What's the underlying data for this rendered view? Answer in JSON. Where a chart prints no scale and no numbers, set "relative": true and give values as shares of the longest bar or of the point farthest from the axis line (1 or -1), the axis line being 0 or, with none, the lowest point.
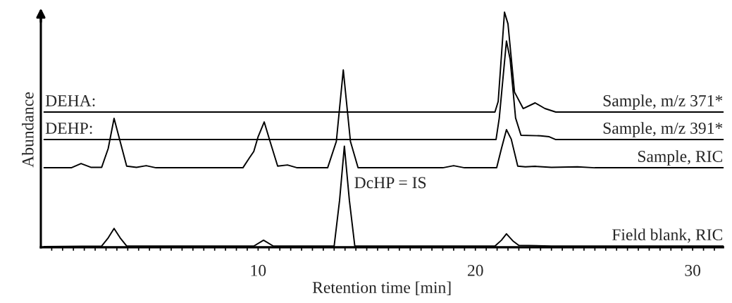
{
  "chart_data": {
    "type": "line",
    "relative": true,
    "xlabel": "Retention time [min]",
    "ylabel": "Abundance",
    "xlim": [
      0,
      31.4
    ],
    "xticks": [
      {
        "value": 0.5,
        "label": null
      },
      {
        "value": 1,
        "label": null
      },
      {
        "value": 1.5,
        "label": null
      },
      {
        "value": 2,
        "label": null
      },
      {
        "value": 2.5,
        "label": null
      },
      {
        "value": 3,
        "label": null
      },
      {
        "value": 3.5,
        "label": null
      },
      {
        "value": 4,
        "label": null
      },
      {
        "value": 4.5,
        "label": null
      },
      {
        "value": 5,
        "label": null
      },
      {
        "value": 5.5,
        "label": null
      },
      {
        "value": 6,
        "label": null
      },
      {
        "value": 6.5,
        "label": null
      },
      {
        "value": 7,
        "label": null
      },
      {
        "value": 7.5,
        "label": null
      },
      {
        "value": 8,
        "label": null
      },
      {
        "value": 8.5,
        "label": null
      },
      {
        "value": 9,
        "label": null
      },
      {
        "value": 9.5,
        "label": null
      },
      10,
      {
        "value": 10.5,
        "label": null
      },
      {
        "value": 11,
        "label": null
      },
      {
        "value": 11.5,
        "label": null
      },
      {
        "value": 12,
        "label": null
      },
      {
        "value": 12.5,
        "label": null
      },
      {
        "value": 13,
        "label": null
      },
      {
        "value": 13.5,
        "label": null
      },
      {
        "value": 14,
        "label": null
      },
      {
        "value": 14.5,
        "label": null
      },
      {
        "value": 15,
        "label": null
      },
      {
        "value": 15.5,
        "label": null
      },
      {
        "value": 16,
        "label": null
      },
      {
        "value": 16.5,
        "label": null
      },
      {
        "value": 17,
        "label": null
      },
      {
        "value": 17.5,
        "label": null
      },
      {
        "value": 18,
        "label": null
      },
      {
        "value": 18.5,
        "label": null
      },
      {
        "value": 19,
        "label": null
      },
      {
        "value": 19.5,
        "label": null
      },
      20,
      {
        "value": 20.5,
        "label": null
      },
      {
        "value": 21,
        "label": null
      },
      {
        "value": 21.5,
        "label": null
      },
      {
        "value": 22,
        "label": null
      },
      {
        "value": 22.5,
        "label": null
      },
      {
        "value": 23,
        "label": null
      },
      {
        "value": 23.5,
        "label": null
      },
      {
        "value": 24,
        "label": null
      },
      {
        "value": 24.5,
        "label": null
      },
      {
        "value": 25,
        "label": null
      },
      {
        "value": 25.5,
        "label": null
      },
      {
        "value": 26,
        "label": null
      },
      {
        "value": 26.5,
        "label": null
      },
      {
        "value": 27,
        "label": null
      },
      {
        "value": 27.5,
        "label": null
      },
      {
        "value": 28,
        "label": null
      },
      {
        "value": 28.5,
        "label": null
      },
      {
        "value": 29,
        "label": null
      },
      {
        "value": 29.5,
        "label": null
      },
      30,
      {
        "value": 30.5,
        "label": null
      },
      {
        "value": 31,
        "label": null
      }
    ],
    "tick_labels": "x",
    "grid": false,
    "legend": false,
    "marker": "none",
    "line_style": "solid",
    "series": [
      {
        "name": "Sample, m/z 371*",
        "color": "#000000",
        "x": [
          0.15,
          20.9,
          21.05,
          21.34,
          21.5,
          21.8,
          22.2,
          22.75,
          23.2,
          23.7,
          31.4
        ],
        "values": [
          0.575,
          0.575,
          0.62,
          1.0,
          0.95,
          0.66,
          0.59,
          0.614,
          0.59,
          0.575,
          0.575
        ]
      },
      {
        "name": "Sample, m/z 391*",
        "color": "#000000",
        "x": [
          0.15,
          20.95,
          21.1,
          21.43,
          21.6,
          21.85,
          22.1,
          23.0,
          23.4,
          23.7,
          31.4
        ],
        "values": [
          0.458,
          0.458,
          0.55,
          0.877,
          0.8,
          0.55,
          0.476,
          0.474,
          0.47,
          0.458,
          0.458
        ]
      },
      {
        "name": "Sample, RIC",
        "color": "#000000",
        "x": [
          0.15,
          1.4,
          1.85,
          2.3,
          2.8,
          3.1,
          3.37,
          3.65,
          3.95,
          4.4,
          4.85,
          5.3,
          9.3,
          9.6,
          9.8,
          10.0,
          10.28,
          10.55,
          10.9,
          11.35,
          11.8,
          13.2,
          13.6,
          13.92,
          14.25,
          14.6,
          18.5,
          19.0,
          19.5,
          20.98,
          21.2,
          21.43,
          21.65,
          21.95,
          22.3,
          22.75,
          23.5,
          24.7,
          25.5,
          31.4
        ],
        "values": [
          0.338,
          0.338,
          0.356,
          0.34,
          0.34,
          0.42,
          0.548,
          0.45,
          0.345,
          0.34,
          0.347,
          0.338,
          0.338,
          0.38,
          0.407,
          0.47,
          0.533,
          0.45,
          0.345,
          0.35,
          0.338,
          0.338,
          0.45,
          0.754,
          0.45,
          0.338,
          0.338,
          0.347,
          0.338,
          0.338,
          0.42,
          0.5,
          0.46,
          0.345,
          0.342,
          0.344,
          0.34,
          0.342,
          0.338,
          0.338
        ]
      },
      {
        "name": "Field blank, RIC",
        "color": "#000000",
        "x": [
          0.15,
          2.8,
          3.1,
          3.37,
          3.65,
          3.95,
          9.8,
          10.25,
          10.7,
          13.5,
          13.75,
          13.97,
          14.2,
          14.45,
          20.9,
          21.2,
          21.43,
          21.75,
          22.0,
          23.5,
          31.4
        ],
        "values": [
          0.003,
          0.005,
          0.04,
          0.08,
          0.04,
          0.005,
          0.005,
          0.03,
          0.005,
          0.005,
          0.2,
          0.43,
          0.2,
          0.005,
          0.005,
          0.03,
          0.057,
          0.025,
          0.008,
          0.005,
          0.005
        ]
      }
    ],
    "annotations": [
      "DEHA:",
      "DEHP:",
      "DcHP = IS"
    ]
  }
}
